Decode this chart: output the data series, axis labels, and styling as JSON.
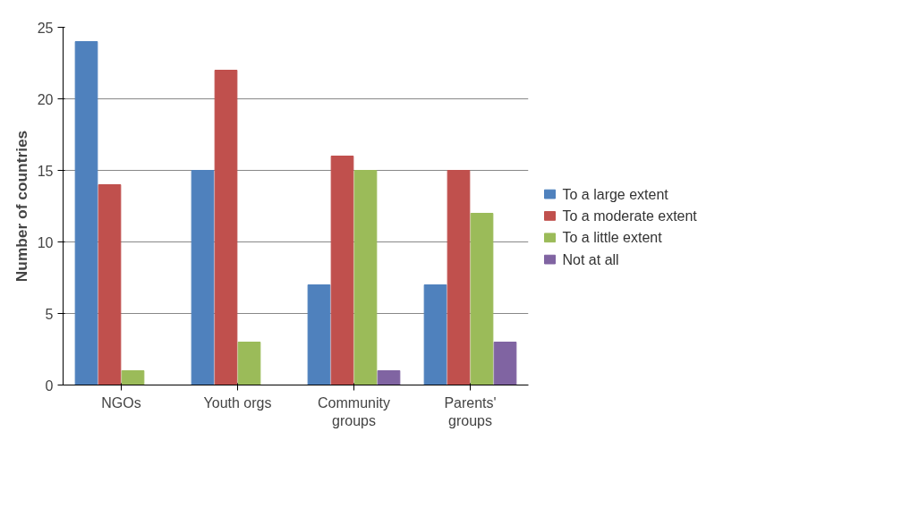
{
  "chart_data": {
    "type": "bar",
    "ylabel": "Number of countries",
    "categories": [
      "NGOs",
      "Youth orgs",
      "Community groups",
      "Parents' groups"
    ],
    "series": [
      {
        "name": "To a large extent",
        "color": "#4f81bd",
        "values": [
          24,
          15,
          7,
          7
        ]
      },
      {
        "name": "To a moderate extent",
        "color": "#c0504d",
        "values": [
          14,
          22,
          16,
          15
        ]
      },
      {
        "name": "To a little extent",
        "color": "#9bbb59",
        "values": [
          1,
          3,
          15,
          12
        ]
      },
      {
        "name": "Not at all",
        "color": "#8064a2",
        "values": [
          null,
          null,
          1,
          3
        ]
      }
    ],
    "ylim": [
      0,
      25
    ],
    "yticks": [
      0,
      5,
      10,
      15,
      20,
      25
    ],
    "grid": "y",
    "legend": "right"
  }
}
